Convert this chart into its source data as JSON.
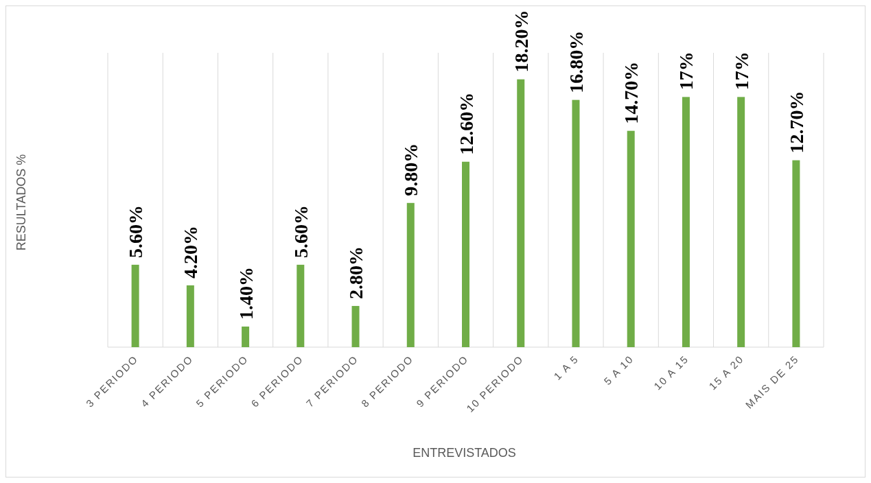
{
  "chart_data": {
    "type": "bar",
    "xlabel": "ENTREVISTADOS",
    "ylabel": "RESULTADOS %",
    "categories": [
      "3 PERIODO",
      "4 PERIODO",
      "5 PERIODO",
      "6 PERIODO",
      "7 PERIODO",
      "8 PERIODO",
      "9 PERIODO",
      "10 PERIODO",
      "1 A 5",
      "5 A 10",
      "10 A 15",
      "15 A 20",
      "MAIS DE 25"
    ],
    "values": [
      5.6,
      4.2,
      1.4,
      5.6,
      2.8,
      9.8,
      12.6,
      18.2,
      16.8,
      14.7,
      17,
      17,
      12.7
    ],
    "value_labels": [
      "5.60%",
      "4.20%",
      "1.40%",
      "5.60%",
      "2.80%",
      "9.80%",
      "12.60%",
      "18.20%",
      "16.80%",
      "14.70%",
      "17%",
      "17%",
      "12.70%"
    ],
    "color": "#70ad47",
    "ylim": [
      0,
      20
    ],
    "grid": "x",
    "tick_labels": "x"
  }
}
